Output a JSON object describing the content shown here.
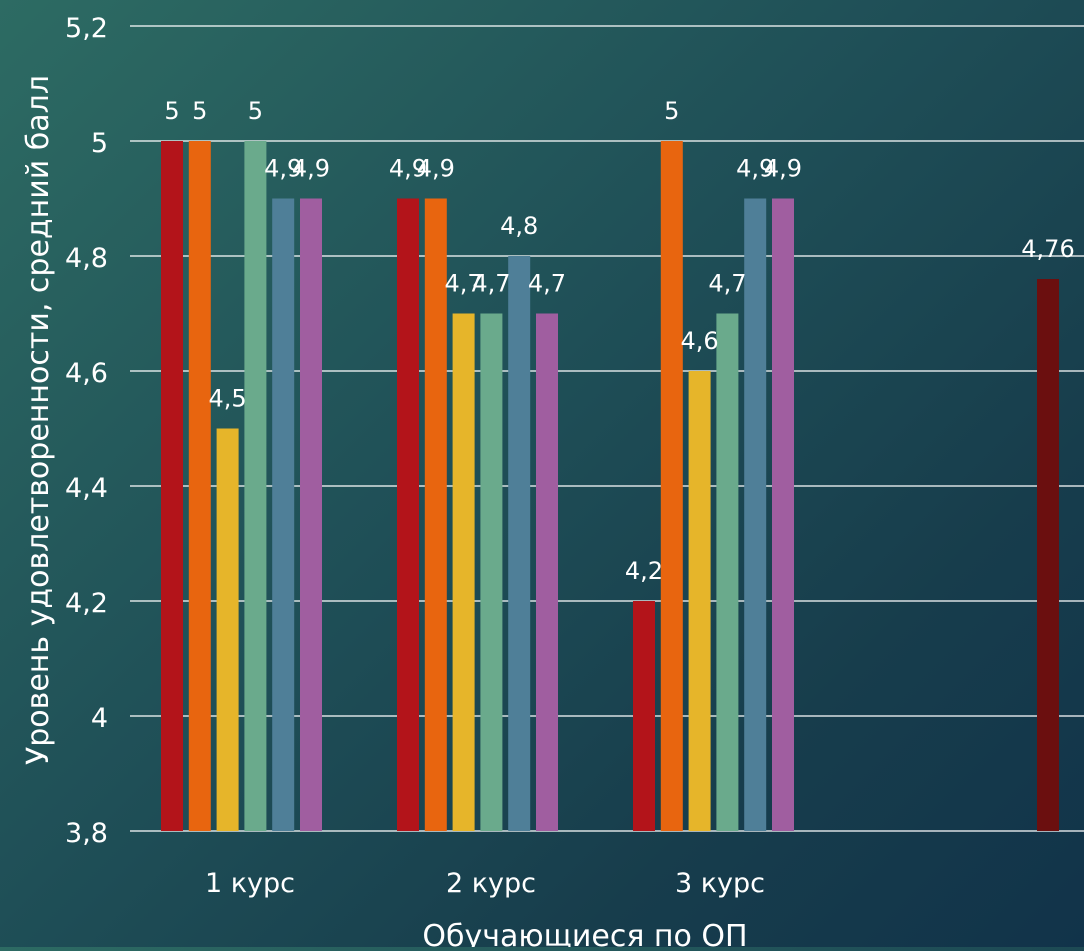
{
  "chart_data": {
    "type": "bar",
    "title": "",
    "xlabel": "Обучающиеся по ОП",
    "ylabel": "Уровень удовлетворенности, средний балл",
    "ylim": [
      3.8,
      5.2
    ],
    "yticks": [
      "3,8",
      "4",
      "4,2",
      "4,4",
      "4,6",
      "4,8",
      "5",
      "5,2"
    ],
    "grid": true,
    "legend": "none",
    "categories": [
      "1 курс",
      "2 курс",
      "3 курс",
      ""
    ],
    "series": [
      {
        "color": "#b3141a",
        "values": [
          5,
          4.9,
          4.2,
          null
        ],
        "labels": [
          "5",
          "4,9",
          "4,2",
          ""
        ]
      },
      {
        "color": "#e8650f",
        "values": [
          5,
          4.9,
          5,
          null
        ],
        "labels": [
          "5",
          "4,9",
          "5",
          ""
        ]
      },
      {
        "color": "#e6b52a",
        "values": [
          4.5,
          4.7,
          4.6,
          null
        ],
        "labels": [
          "4,5",
          "4,7",
          "4,6",
          ""
        ]
      },
      {
        "color": "#6aaa8c",
        "values": [
          5,
          4.7,
          4.7,
          null
        ],
        "labels": [
          "5",
          "4,7",
          "4,7",
          ""
        ]
      },
      {
        "color": "#4f7f98",
        "values": [
          4.9,
          4.8,
          4.9,
          null
        ],
        "labels": [
          "4,9",
          "4,8",
          "4,9",
          ""
        ]
      },
      {
        "color": "#a05ea0",
        "values": [
          4.9,
          4.7,
          4.9,
          null
        ],
        "labels": [
          "4,9",
          "4,7",
          "4,9",
          ""
        ]
      },
      {
        "color": "#6b0f0f",
        "values": [
          null,
          null,
          null,
          4.76
        ],
        "labels": [
          "",
          "",
          "",
          "4,76"
        ]
      }
    ]
  }
}
